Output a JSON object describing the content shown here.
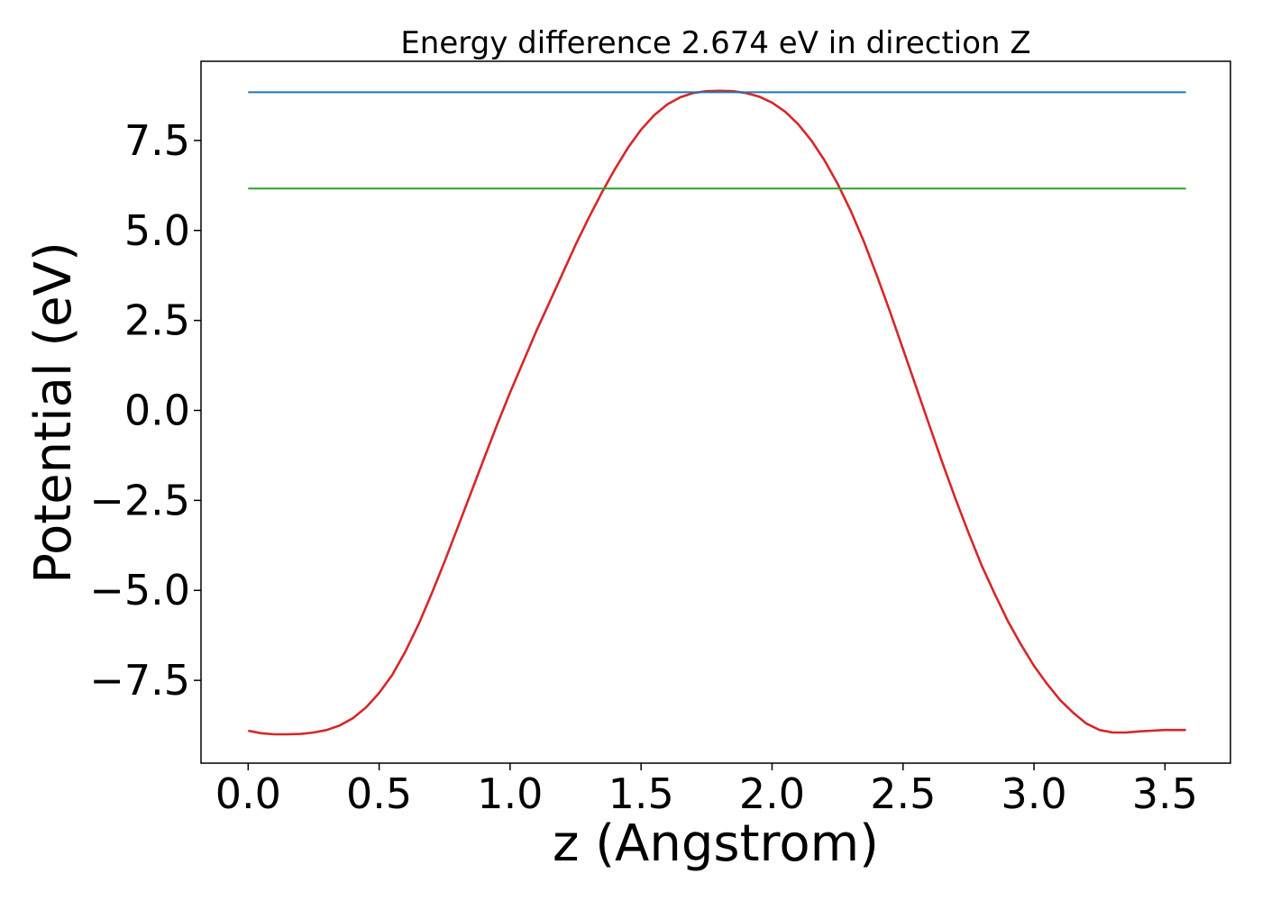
{
  "chart_data": {
    "type": "line",
    "title": "Energy difference 2.674 eV in direction Z",
    "xlabel": "z (Angstrom)",
    "ylabel": "Potential (eV)",
    "xlim": [
      -0.18,
      3.75
    ],
    "ylim": [
      -9.8,
      9.7
    ],
    "xticks": [
      0.0,
      0.5,
      1.0,
      1.5,
      2.0,
      2.5,
      3.0,
      3.5
    ],
    "xtick_labels": [
      "0.0",
      "0.5",
      "1.0",
      "1.5",
      "2.0",
      "2.5",
      "3.0",
      "3.5"
    ],
    "yticks": [
      -7.5,
      -5.0,
      -2.5,
      0.0,
      2.5,
      5.0,
      7.5
    ],
    "ytick_labels": [
      "−7.5",
      "−5.0",
      "−2.5",
      "0.0",
      "2.5",
      "5.0",
      "7.5"
    ],
    "grid": false,
    "series": [
      {
        "color": "#d62728",
        "x": [
          0.0,
          0.05,
          0.1,
          0.15,
          0.2,
          0.25,
          0.3,
          0.35,
          0.4,
          0.45,
          0.5,
          0.55,
          0.6,
          0.65,
          0.7,
          0.75,
          0.8,
          0.85,
          0.9,
          0.95,
          1.0,
          1.05,
          1.1,
          1.15,
          1.2,
          1.25,
          1.3,
          1.35,
          1.4,
          1.45,
          1.5,
          1.55,
          1.6,
          1.65,
          1.7,
          1.75,
          1.8,
          1.85,
          1.9,
          1.95,
          2.0,
          2.05,
          2.1,
          2.15,
          2.2,
          2.25,
          2.3,
          2.35,
          2.4,
          2.45,
          2.5,
          2.55,
          2.6,
          2.65,
          2.7,
          2.75,
          2.8,
          2.85,
          2.9,
          2.95,
          3.0,
          3.05,
          3.1,
          3.15,
          3.2,
          3.25,
          3.3,
          3.35,
          3.4,
          3.45,
          3.5,
          3.55,
          3.58
        ],
        "y": [
          -8.9,
          -8.97,
          -9.0,
          -9.0,
          -8.99,
          -8.95,
          -8.88,
          -8.75,
          -8.55,
          -8.25,
          -7.85,
          -7.35,
          -6.7,
          -5.95,
          -5.1,
          -4.2,
          -3.25,
          -2.3,
          -1.35,
          -0.4,
          0.5,
          1.35,
          2.2,
          3.0,
          3.8,
          4.6,
          5.35,
          6.05,
          6.7,
          7.3,
          7.8,
          8.2,
          8.5,
          8.7,
          8.82,
          8.87,
          8.88,
          8.87,
          8.82,
          8.72,
          8.55,
          8.3,
          7.95,
          7.5,
          6.95,
          6.3,
          5.55,
          4.7,
          3.75,
          2.75,
          1.7,
          0.65,
          -0.4,
          -1.45,
          -2.45,
          -3.4,
          -4.3,
          -5.1,
          -5.85,
          -6.5,
          -7.1,
          -7.6,
          -8.05,
          -8.4,
          -8.7,
          -8.88,
          -8.95,
          -8.95,
          -8.92,
          -8.9,
          -8.88,
          -8.88,
          -8.88
        ]
      },
      {
        "color": "#1f77b4",
        "x": [
          0.0,
          3.58
        ],
        "y": [
          8.84,
          8.84
        ]
      },
      {
        "color": "#2ca02c",
        "x": [
          0.0,
          3.58
        ],
        "y": [
          6.166,
          6.166
        ]
      }
    ]
  }
}
